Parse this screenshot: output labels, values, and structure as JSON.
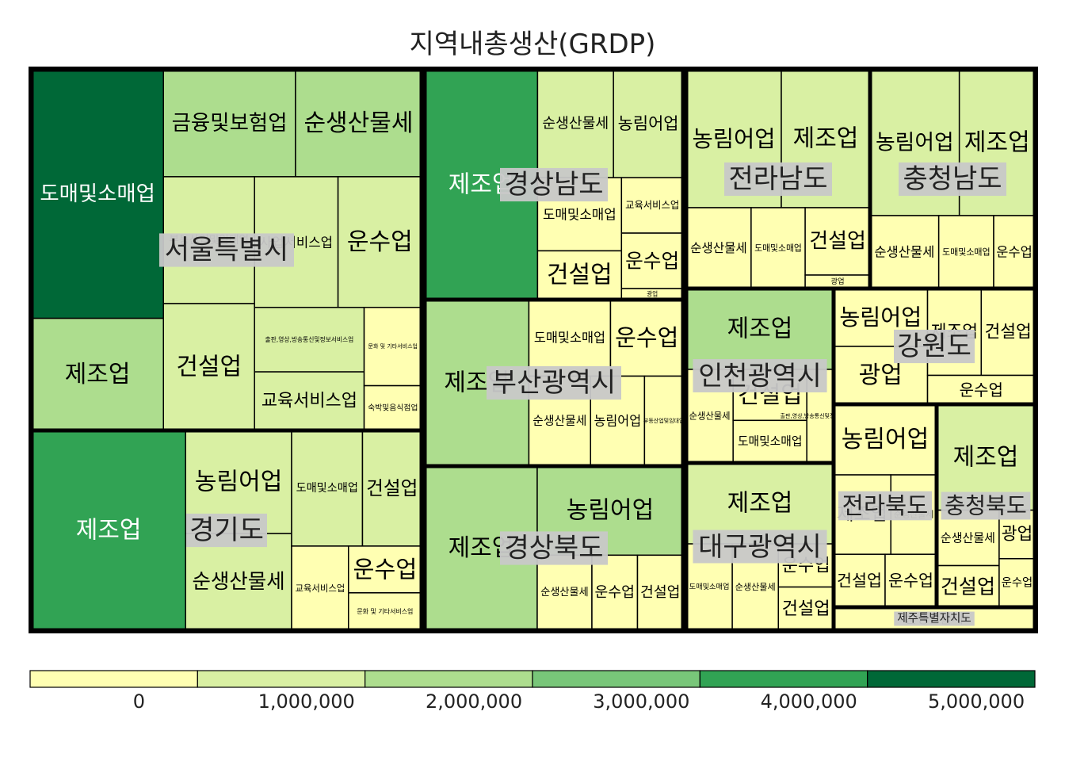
{
  "chart_data": {
    "type": "treemap",
    "title": "지역내총생산(GRDP)",
    "legend": {
      "position": "bottom",
      "ticks": [
        "0",
        "1,000,000",
        "2,000,000",
        "3,000,000",
        "4,000,000",
        "5,000,000"
      ],
      "colors": [
        "#ffffb2",
        "#d9f0a3",
        "#addd8e",
        "#78c679",
        "#31a354",
        "#006837"
      ]
    },
    "regions": [
      {
        "name": "서울특별시",
        "sectors": [
          {
            "name": "도매및소매업",
            "value": 5100000
          },
          {
            "name": "제조업",
            "value": 2300000
          },
          {
            "name": "금융및보험업",
            "value": 2200000
          },
          {
            "name": "순생산물세",
            "value": 2100000
          },
          {
            "name": "부동산업및임대업",
            "value": 1800000
          },
          {
            "name": "사업서비스업",
            "value": 1700000
          },
          {
            "name": "출판,영상,방송통신및정보서비스업",
            "value": 1100000
          },
          {
            "name": "건설업",
            "value": 1800000
          },
          {
            "name": "운수업",
            "value": 1700000
          },
          {
            "name": "교육서비스업",
            "value": 1000000
          },
          {
            "name": "문화 및 기타서비스업",
            "value": 700000
          },
          {
            "name": "숙박및음식점업",
            "value": 400000
          }
        ]
      },
      {
        "name": "경기도",
        "sectors": [
          {
            "name": "제조업",
            "value": 4500000
          },
          {
            "name": "농림어업",
            "value": 1600000
          },
          {
            "name": "순생산물세",
            "value": 1500000
          },
          {
            "name": "도매및소매업",
            "value": 1200000
          },
          {
            "name": "건설업",
            "value": 1000000
          },
          {
            "name": "교육서비스업",
            "value": 700000
          },
          {
            "name": "운수업",
            "value": 500000
          },
          {
            "name": "문화 및 기타서비스업",
            "value": 400000
          }
        ]
      },
      {
        "name": "경상남도",
        "sectors": [
          {
            "name": "제조업",
            "value": 3800000
          },
          {
            "name": "농림어업",
            "value": 1100000
          },
          {
            "name": "도매및소매업",
            "value": 900000
          },
          {
            "name": "순생산물세",
            "value": 1200000
          },
          {
            "name": "교육서비스업",
            "value": 500000
          },
          {
            "name": "건설업",
            "value": 600000
          },
          {
            "name": "운수업",
            "value": 500000
          },
          {
            "name": "광업",
            "value": 100000
          }
        ]
      },
      {
        "name": "부산광역시",
        "sectors": [
          {
            "name": "제조업",
            "value": 2500000
          },
          {
            "name": "운수업",
            "value": 800000
          },
          {
            "name": "농림어업",
            "value": 700000
          },
          {
            "name": "부동산업및임대업",
            "value": 500000
          },
          {
            "name": "도매및소매업",
            "value": 900000
          },
          {
            "name": "순생산물세",
            "value": 800000
          }
        ]
      },
      {
        "name": "경상북도",
        "sectors": [
          {
            "name": "제조업",
            "value": 2700000
          },
          {
            "name": "농림어업",
            "value": 1900000
          },
          {
            "name": "운수업",
            "value": 500000
          },
          {
            "name": "건설업",
            "value": 500000
          },
          {
            "name": "순생산물세",
            "value": 600000
          }
        ]
      },
      {
        "name": "전라남도",
        "sectors": [
          {
            "name": "농림어업",
            "value": 1500000
          },
          {
            "name": "제조업",
            "value": 1400000
          },
          {
            "name": "도매및소매업",
            "value": 500000
          },
          {
            "name": "건설업",
            "value": 500000
          },
          {
            "name": "광업",
            "value": 100000
          },
          {
            "name": "순생산물세",
            "value": 600000
          }
        ]
      },
      {
        "name": "충청남도",
        "sectors": [
          {
            "name": "농림어업",
            "value": 1300000
          },
          {
            "name": "제조업",
            "value": 1100000
          },
          {
            "name": "도매및소매업",
            "value": 400000
          },
          {
            "name": "운수업",
            "value": 300000
          },
          {
            "name": "순생산물세",
            "value": 500000
          }
        ]
      },
      {
        "name": "인천광역시",
        "sectors": [
          {
            "name": "제조업",
            "value": 1900000
          },
          {
            "name": "건설업",
            "value": 600000
          },
          {
            "name": "도매및소매업",
            "value": 500000
          },
          {
            "name": "출판,영상,방송통신및정보서비스업",
            "value": 400000
          },
          {
            "name": "순생산물세",
            "value": 700000
          }
        ]
      },
      {
        "name": "강원도",
        "sectors": [
          {
            "name": "농림어업",
            "value": 700000
          },
          {
            "name": "제조업",
            "value": 600000
          },
          {
            "name": "건설업",
            "value": 600000
          },
          {
            "name": "운수업",
            "value": 400000
          },
          {
            "name": "광업",
            "value": 700000
          }
        ]
      },
      {
        "name": "전라북도",
        "sectors": [
          {
            "name": "농림어업",
            "value": 800000
          },
          {
            "name": "제조업",
            "value": 500000
          },
          {
            "name": "건설업",
            "value": 300000
          },
          {
            "name": "운수업",
            "value": 300000
          },
          {
            "name": "순생산물세",
            "value": 400000
          }
        ]
      },
      {
        "name": "충청북도",
        "sectors": [
          {
            "name": "제조업",
            "value": 1200000
          },
          {
            "name": "건설업",
            "value": 300000
          },
          {
            "name": "광업",
            "value": 200000
          },
          {
            "name": "운수업",
            "value": 200000
          },
          {
            "name": "순생산물세",
            "value": 400000
          }
        ]
      },
      {
        "name": "대구광역시",
        "sectors": [
          {
            "name": "제조업",
            "value": 1500000
          },
          {
            "name": "도매및소매업",
            "value": 500000
          },
          {
            "name": "운수업",
            "value": 300000
          },
          {
            "name": "건설업",
            "value": 300000
          },
          {
            "name": "순생산물세",
            "value": 500000
          }
        ]
      },
      {
        "name": "제주특별자치도",
        "sectors": [
          {
            "name": "순생산물세",
            "value": 200000
          }
        ]
      }
    ]
  }
}
